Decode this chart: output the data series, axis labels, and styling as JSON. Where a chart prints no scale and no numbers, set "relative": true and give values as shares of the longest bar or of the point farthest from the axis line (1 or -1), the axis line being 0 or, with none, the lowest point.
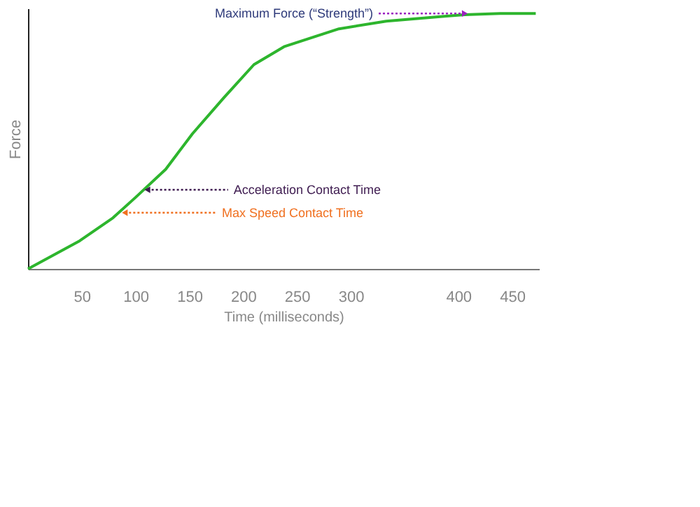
{
  "chart_data": {
    "type": "line",
    "relative": true,
    "xlabel": "Time (milliseconds)",
    "ylabel": "Force",
    "xlim": [
      0,
      475
    ],
    "xticks": [
      50,
      100,
      150,
      200,
      250,
      300,
      400,
      450
    ],
    "grid": false,
    "marker": "none",
    "line_style": "solid",
    "x": [
      0,
      48,
      79,
      100,
      128,
      153,
      182,
      210,
      238,
      267,
      289,
      333,
      389,
      406,
      439,
      472
    ],
    "series": [
      {
        "color": "#2db52d",
        "values": [
          0,
          0.11,
          0.2,
          0.28,
          0.39,
          0.53,
          0.67,
          0.8,
          0.87,
          0.91,
          0.94,
          0.97,
          0.99,
          0.995,
          1,
          1
        ]
      }
    ],
    "annotations": [
      {
        "text": "Maximum Force (“Strength”)",
        "x": 406,
        "y": 1
      },
      {
        "text": "Acceleration Contact Time",
        "x": 111,
        "y": 0.31
      },
      {
        "text": "Max Speed Contact Time",
        "x": 90,
        "y": 0.22
      }
    ]
  }
}
